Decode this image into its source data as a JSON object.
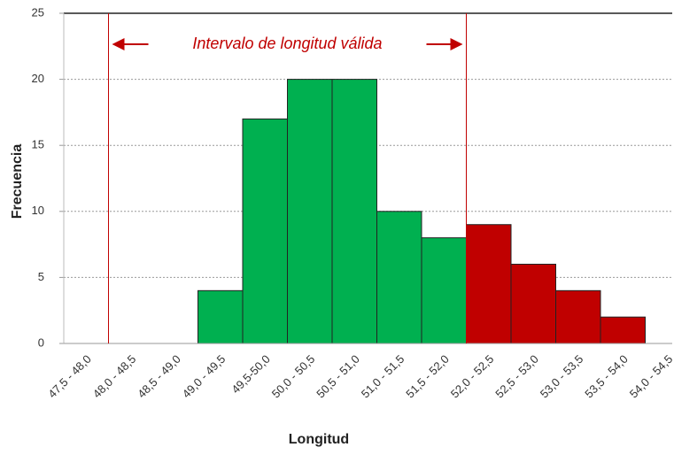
{
  "chart_data": {
    "type": "bar",
    "annotation": "Intervalo de longitud válida",
    "x_label": "Longitud",
    "y_label": "Frecuencia",
    "categories": [
      "47,5 - 48,0",
      "48,0 - 48,5",
      "48,5 - 49,0",
      "49,0 - 49,5",
      "49,5-50,0",
      "50,0 - 50,5",
      "50,5 - 51,0",
      "51,0 - 51,5",
      "51,5 - 52,0",
      "52,0 - 52,5",
      "52,5 - 53,0",
      "53,0 - 53,5",
      "53,5 - 54,0",
      "54,0 - 54,5"
    ],
    "values": [
      0,
      0,
      0,
      4,
      17,
      20,
      20,
      10,
      8,
      9,
      6,
      4,
      2,
      0
    ],
    "colors": [
      "#00b050",
      "#00b050",
      "#00b050",
      "#00b050",
      "#00b050",
      "#00b050",
      "#00b050",
      "#00b050",
      "#00b050",
      "#c00000",
      "#c00000",
      "#c00000",
      "#c00000",
      "#c00000"
    ],
    "ylim": [
      0,
      25
    ],
    "yticks": [
      0,
      5,
      10,
      15,
      20,
      25
    ],
    "grid": true
  }
}
